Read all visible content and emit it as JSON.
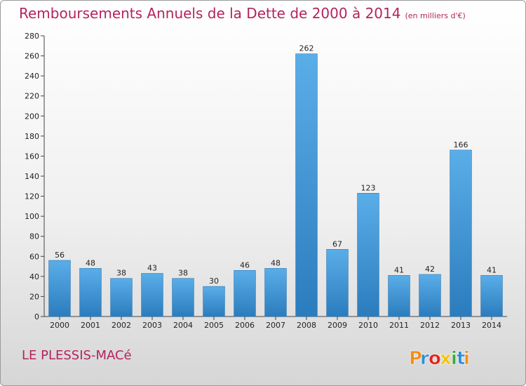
{
  "title": "Remboursements Annuels de la Dette de 2000 à 2014",
  "subtitle": "(en milliers d'€)",
  "commune": "LE PLESSIS-MACé",
  "logo_text": "Proxiti",
  "colors": {
    "title": "#b5235c",
    "bar_top": "#5aaee8",
    "bar_bottom": "#2b7cbd",
    "logo": [
      "#f28c1a",
      "#2e8ed6",
      "#e2231a",
      "#f2c200",
      "#3aa935",
      "#2e8ed6",
      "#f28c1a"
    ]
  },
  "chart_data": {
    "type": "bar",
    "categories": [
      "2000",
      "2001",
      "2002",
      "2003",
      "2004",
      "2005",
      "2006",
      "2007",
      "2008",
      "2009",
      "2010",
      "2011",
      "2012",
      "2013",
      "2014"
    ],
    "values": [
      56,
      48,
      38,
      43,
      38,
      30,
      46,
      48,
      262,
      67,
      123,
      41,
      42,
      166,
      41
    ],
    "ylim": [
      0,
      280
    ],
    "yticks": [
      0,
      20,
      40,
      60,
      80,
      100,
      120,
      140,
      160,
      180,
      200,
      220,
      240,
      260,
      280
    ],
    "grid": false,
    "data_labels": true
  }
}
